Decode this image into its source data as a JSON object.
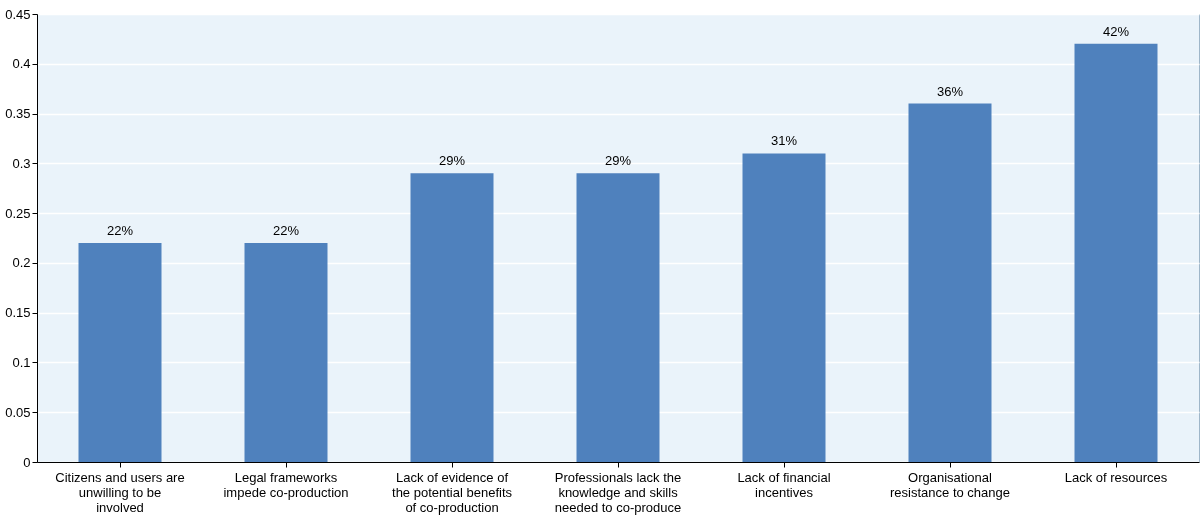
{
  "chart_data": {
    "type": "bar",
    "categories": [
      "Citizens and users are unwilling to be involved",
      "Legal frameworks impede co-production",
      "Lack of evidence of the potential benefits of co-production",
      "Professionals lack the knowledge and skills needed to co-produce",
      "Lack of financial incentives",
      "Organisational resistance to change",
      "Lack of resources"
    ],
    "values": [
      0.22,
      0.22,
      0.29,
      0.29,
      0.31,
      0.36,
      0.42
    ],
    "value_labels": [
      "22%",
      "22%",
      "29%",
      "29%",
      "31%",
      "36%",
      "42%"
    ],
    "color": "#4f81bd",
    "ylim": [
      0,
      0.45
    ],
    "yticks": [
      0,
      0.05,
      0.1,
      0.15,
      0.2,
      0.25,
      0.3,
      0.35,
      0.4,
      0.45
    ],
    "grid": "y"
  }
}
